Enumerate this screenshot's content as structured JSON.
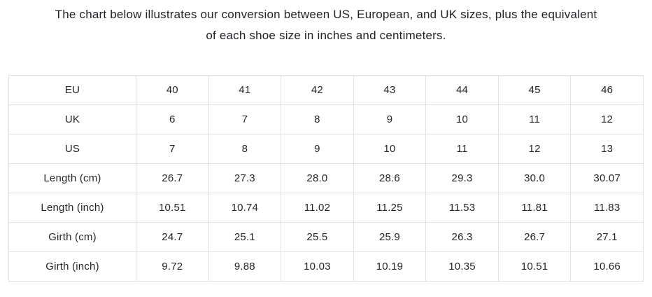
{
  "title": {
    "lines": [
      "The chart below illustrates our conversion between US, European, and UK sizes, plus the equivalent",
      "of each shoe size in inches and centimeters."
    ]
  },
  "colors": {
    "background": "#ffffff",
    "table_border": "#e2e2e2",
    "text": "#24262a"
  },
  "chart_data": {
    "type": "table",
    "title": "The chart below illustrates our conversion between US, European, and UK sizes, plus the equivalent of each shoe size in inches and centimeters.",
    "row_headers": [
      "EU",
      "UK",
      "US",
      "Length (cm)",
      "Length (inch)",
      "Girth (cm)",
      "Girth (inch)"
    ],
    "rows": [
      {
        "label": "EU",
        "values": [
          "40",
          "41",
          "42",
          "43",
          "44",
          "45",
          "46"
        ]
      },
      {
        "label": "UK",
        "values": [
          "6",
          "7",
          "8",
          "9",
          "10",
          "11",
          "12"
        ]
      },
      {
        "label": "US",
        "values": [
          "7",
          "8",
          "9",
          "10",
          "11",
          "12",
          "13"
        ]
      },
      {
        "label": "Length (cm)",
        "values": [
          "26.7",
          "27.3",
          "28.0",
          "28.6",
          "29.3",
          "30.0",
          "30.07"
        ]
      },
      {
        "label": "Length (inch)",
        "values": [
          "10.51",
          "10.74",
          "11.02",
          "11.25",
          "11.53",
          "11.81",
          "11.83"
        ]
      },
      {
        "label": "Girth (cm)",
        "values": [
          "24.7",
          "25.1",
          "25.5",
          "25.9",
          "26.3",
          "26.7",
          "27.1"
        ]
      },
      {
        "label": "Girth (inch)",
        "values": [
          "9.72",
          "9.88",
          "10.03",
          "10.19",
          "10.35",
          "10.51",
          "10.66"
        ]
      }
    ],
    "layout": {
      "grid": true,
      "label_column_first": true,
      "cell_alignment": "center"
    }
  }
}
